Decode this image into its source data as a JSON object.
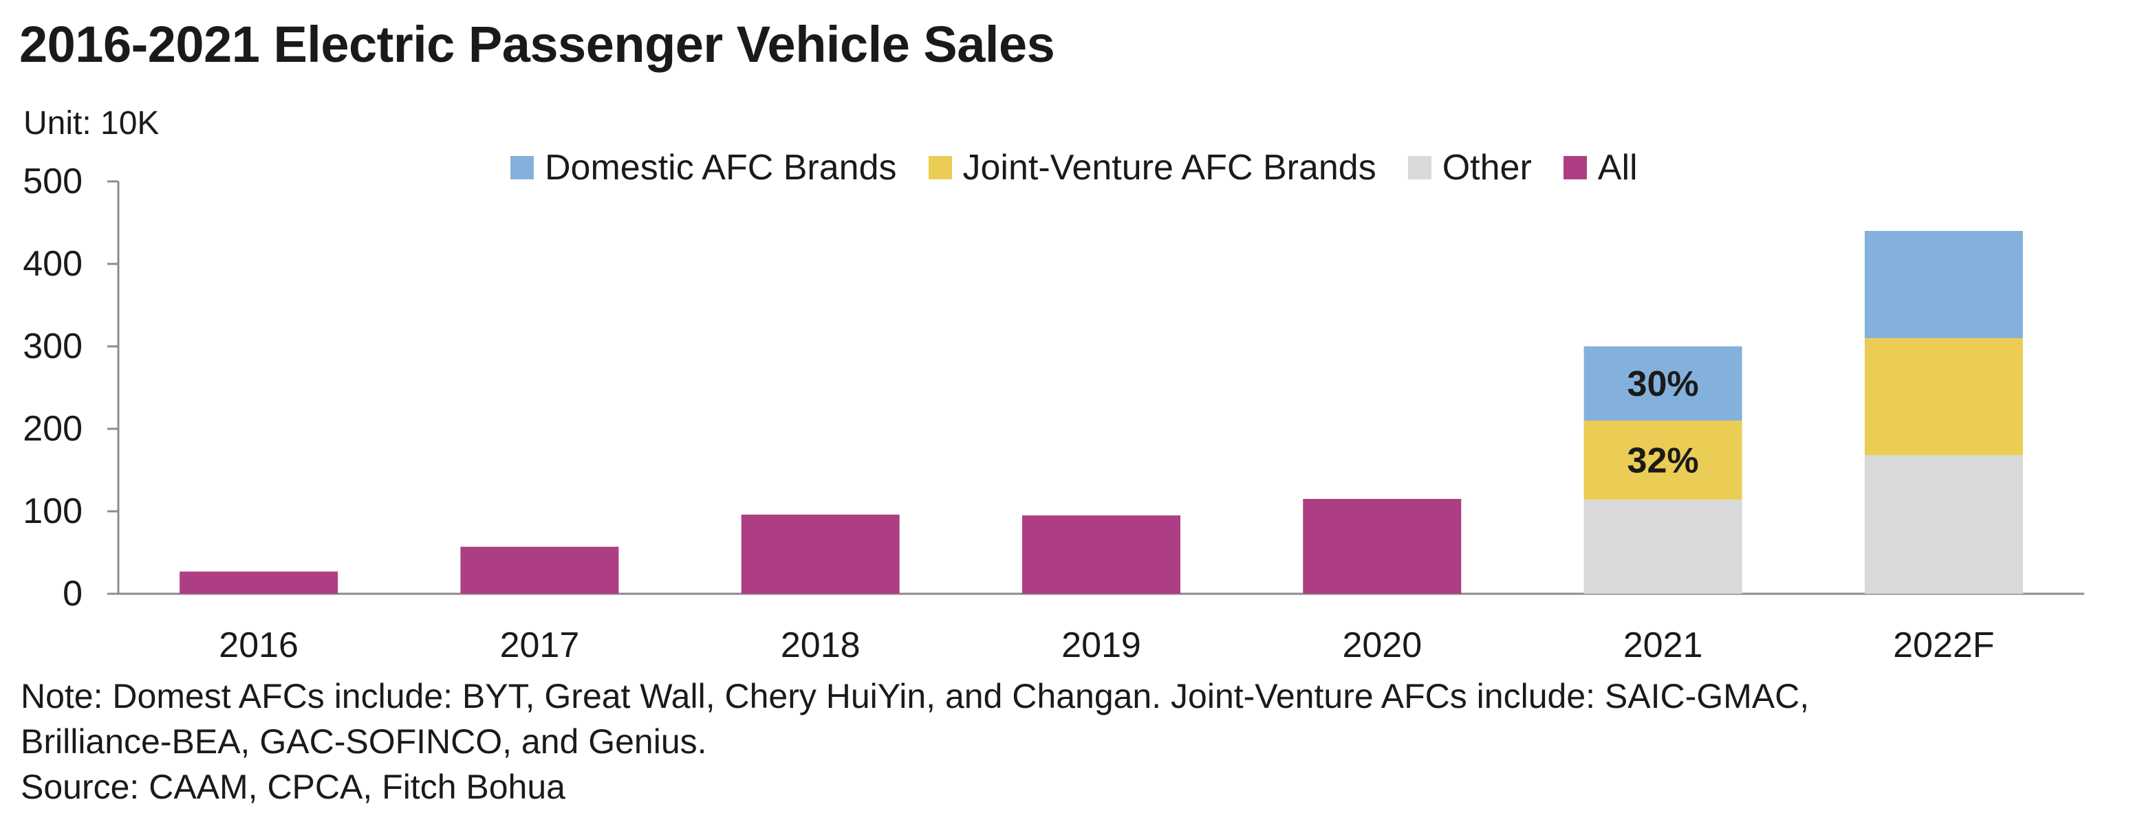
{
  "title": "2016-2021 Electric Passenger Vehicle Sales",
  "unit": "Unit: 10K",
  "notes": [
    "Note: Domest AFCs include: BYT, Great Wall, Chery HuiYin, and Changan. Joint-Venture AFCs include: SAIC-GMAC,",
    "Brilliance-BEA, GAC-SOFINCO, and Genius.",
    "Source: CAAM, CPCA, Fitch Bohua"
  ],
  "chart_data": {
    "type": "bar",
    "stacked": true,
    "categories": [
      "2016",
      "2017",
      "2018",
      "2019",
      "2020",
      "2021",
      "2022F"
    ],
    "ylim": [
      0,
      500
    ],
    "yticks": [
      0,
      100,
      200,
      300,
      400,
      500
    ],
    "grid": false,
    "legend_position": "top",
    "series": [
      {
        "name": "All",
        "color": "#ad3e83",
        "values": [
          27,
          57,
          96,
          95,
          115,
          null,
          null
        ]
      },
      {
        "name": "Other",
        "color": "#d9d9d9",
        "values": [
          null,
          null,
          null,
          null,
          null,
          114,
          168
        ]
      },
      {
        "name": "Joint-Venture AFC Brands",
        "color": "#ebcc54",
        "values": [
          null,
          null,
          null,
          null,
          null,
          96,
          142
        ]
      },
      {
        "name": "Domestic AFC Brands",
        "color": "#84b1dc",
        "values": [
          null,
          null,
          null,
          null,
          null,
          90,
          130
        ]
      }
    ],
    "legend_order": [
      "Domestic AFC Brands",
      "Joint-Venture AFC Brands",
      "Other",
      "All"
    ],
    "annotations": [
      {
        "category": "2021",
        "series": "Domestic AFC Brands",
        "text": "30%"
      },
      {
        "category": "2021",
        "series": "Joint-Venture AFC Brands",
        "text": "32%"
      }
    ]
  }
}
